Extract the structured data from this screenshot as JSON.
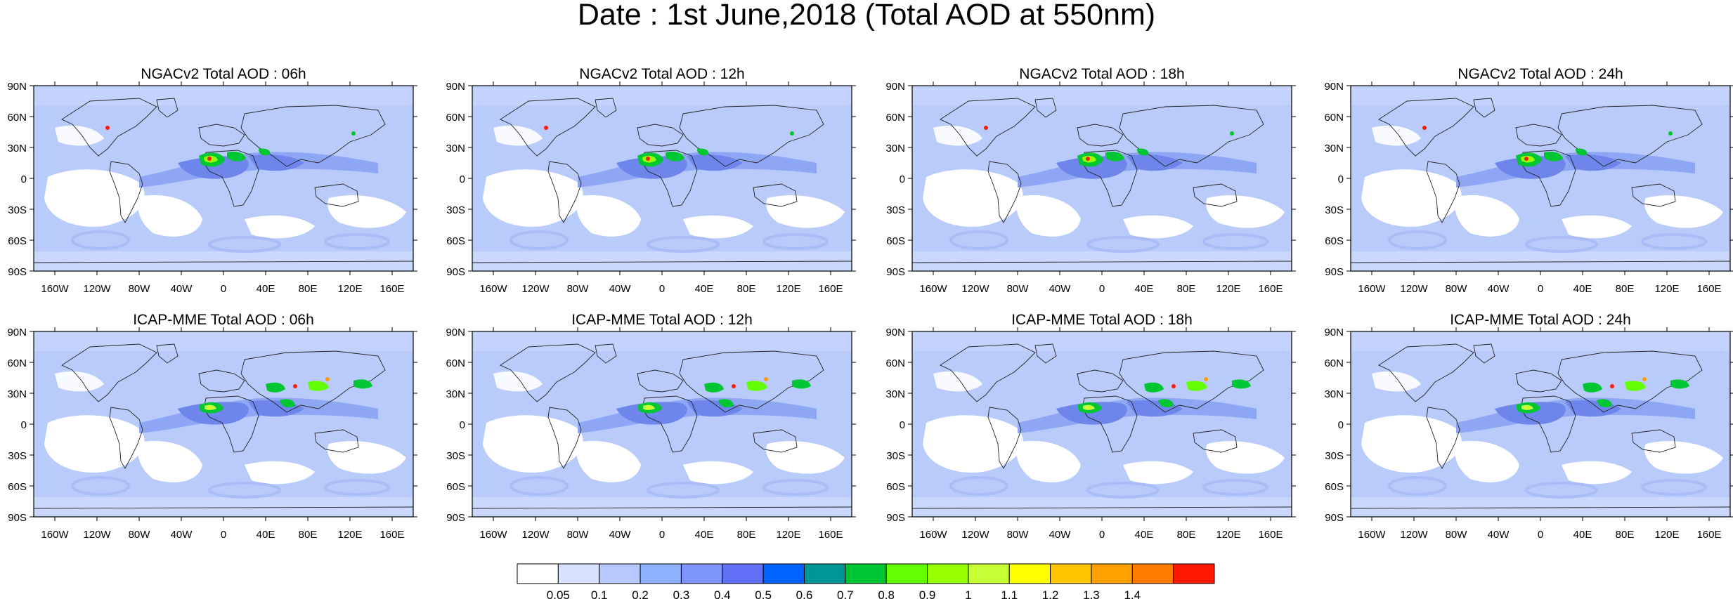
{
  "title": "Date : 1st June,2018 (Total AOD at 550nm)",
  "lon_ticks": [
    "160W",
    "120W",
    "80W",
    "40W",
    "0",
    "40E",
    "80E",
    "120E",
    "160E"
  ],
  "lat_ticks": [
    "90N",
    "60N",
    "30N",
    "0",
    "30S",
    "60S",
    "90S"
  ],
  "panels": [
    {
      "title": "NGACv2 Total AOD : 06h",
      "model": "NGACv2",
      "hour": "06h"
    },
    {
      "title": "NGACv2 Total AOD : 12h",
      "model": "NGACv2",
      "hour": "12h"
    },
    {
      "title": "NGACv2 Total AOD : 18h",
      "model": "NGACv2",
      "hour": "18h"
    },
    {
      "title": "NGACv2 Total AOD : 24h",
      "model": "NGACv2",
      "hour": "24h"
    },
    {
      "title": "ICAP-MME Total AOD : 06h",
      "model": "ICAP-MME",
      "hour": "06h"
    },
    {
      "title": "ICAP-MME Total AOD : 12h",
      "model": "ICAP-MME",
      "hour": "12h"
    },
    {
      "title": "ICAP-MME Total AOD : 18h",
      "model": "ICAP-MME",
      "hour": "18h"
    },
    {
      "title": "ICAP-MME Total AOD : 24h",
      "model": "ICAP-MME",
      "hour": "24h"
    }
  ],
  "colorbar": {
    "labels": [
      "0.05",
      "0.1",
      "0.2",
      "0.3",
      "0.4",
      "0.5",
      "0.6",
      "0.7",
      "0.8",
      "0.9",
      "1",
      "1.1",
      "1.2",
      "1.3",
      "1.4"
    ],
    "colors": [
      "#ffffff",
      "#d6e2ff",
      "#b5c9ff",
      "#8eb2ff",
      "#7f96ff",
      "#6370f8",
      "#0063ff",
      "#009696",
      "#00c633",
      "#63ff00",
      "#96ff00",
      "#c6ff33",
      "#ffff00",
      "#ffc600",
      "#ffa000",
      "#ff7c00",
      "#ff1900"
    ]
  }
}
